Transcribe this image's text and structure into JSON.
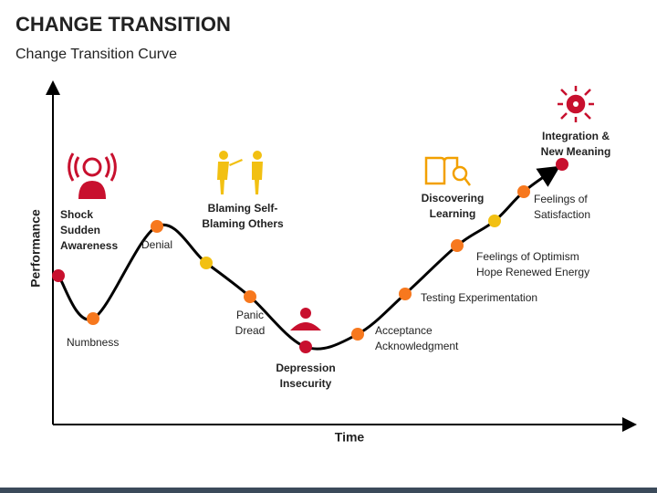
{
  "header": {
    "title": "CHANGE TRANSITION",
    "subtitle": "Change Transition Curve"
  },
  "axes": {
    "y_label": "Performance",
    "x_label": "Time"
  },
  "nodes": [
    {
      "label": [
        "Shock",
        "Sudden",
        "Awareness"
      ]
    },
    {
      "label": [
        "Numbness"
      ]
    },
    {
      "label": [
        "Denial"
      ]
    },
    {
      "label": [
        "Blaming Self-",
        "Blaming Others"
      ]
    },
    {
      "label": [
        "Panic",
        "Dread"
      ]
    },
    {
      "label": [
        "Depression",
        "Insecurity"
      ]
    },
    {
      "label": [
        "Acceptance",
        "Acknowledgment"
      ]
    },
    {
      "label": [
        "Testing Experimentation"
      ]
    },
    {
      "label": [
        "Feelings of Optimism",
        "Hope Renewed Energy"
      ]
    },
    {
      "label": [
        "Discovering",
        "Learning"
      ]
    },
    {
      "label": [
        "Feelings of",
        "Satisfaction"
      ]
    },
    {
      "label": [
        "Integration &",
        "New Meaning"
      ]
    }
  ]
}
